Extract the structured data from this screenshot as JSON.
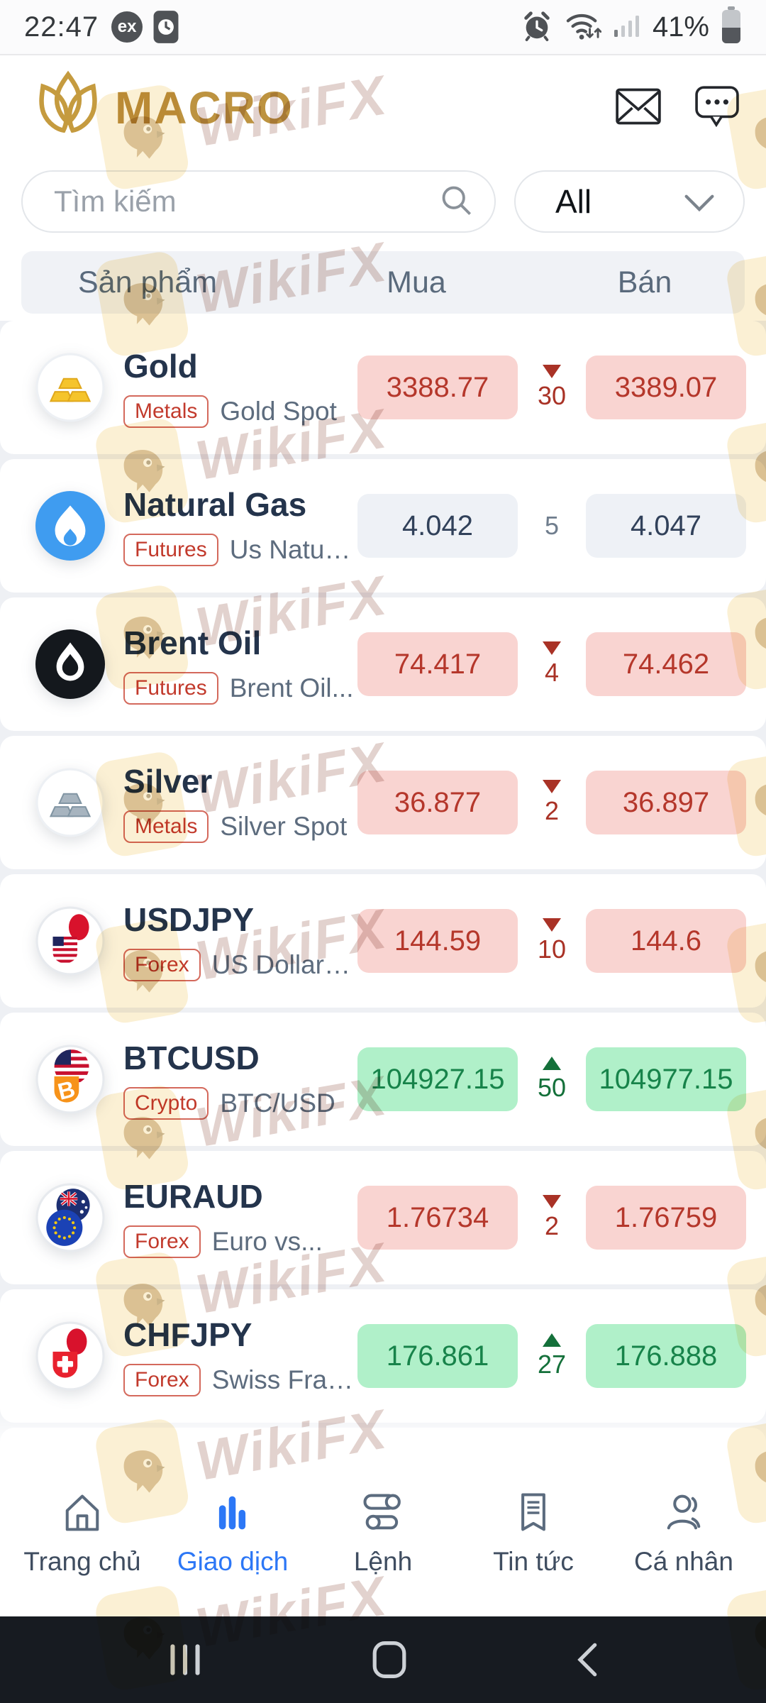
{
  "status_bar": {
    "time": "22:47",
    "ex_badge": "ex",
    "battery_percent": "41%",
    "icons": [
      "screenshot-badge-icon",
      "alarm-icon",
      "wifi-arrows-icon",
      "signal-bars-icon",
      "battery-icon"
    ]
  },
  "header": {
    "brand": "MACRO",
    "icons": [
      "mail-icon",
      "chat-icon"
    ]
  },
  "search": {
    "placeholder": "Tìm kiếm",
    "filter_value": "All"
  },
  "table_header": {
    "product": "Sản phẩm",
    "buy": "Mua",
    "sell": "Bán"
  },
  "market": {
    "rows": [
      {
        "name": "Gold",
        "category": "Metals",
        "description": "Gold Spot",
        "buy": "3388.77",
        "spread": "30",
        "direction": "down",
        "sell": "3389.07",
        "tone": "red",
        "icon": "gold-bars-icon",
        "partial": false
      },
      {
        "name": "Natural Gas",
        "category": "Futures",
        "description": "Us Natural...",
        "buy": "4.042",
        "spread": "5",
        "direction": "none",
        "sell": "4.047",
        "tone": "neutral",
        "icon": "gas-flame-icon",
        "partial": false
      },
      {
        "name": "Brent Oil",
        "category": "Futures",
        "description": "Brent Oil...",
        "buy": "74.417",
        "spread": "4",
        "direction": "down",
        "sell": "74.462",
        "tone": "red",
        "icon": "oil-drop-icon",
        "partial": false
      },
      {
        "name": "Silver",
        "category": "Metals",
        "description": "Silver Spot",
        "buy": "36.877",
        "spread": "2",
        "direction": "down",
        "sell": "36.897",
        "tone": "red",
        "icon": "silver-bars-icon",
        "partial": false
      },
      {
        "name": "USDJPY",
        "category": "Forex",
        "description": "US Dollar v...",
        "buy": "144.59",
        "spread": "10",
        "direction": "down",
        "sell": "144.6",
        "tone": "red",
        "icon": "usdjpy-flags-icon",
        "partial": false
      },
      {
        "name": "BTCUSD",
        "category": "Crypto",
        "description": "BTC/USD",
        "buy": "104927.15",
        "spread": "50",
        "direction": "up",
        "sell": "104977.15",
        "tone": "green",
        "icon": "btcusd-flags-icon",
        "partial": false
      },
      {
        "name": "EURAUD",
        "category": "Forex",
        "description": "Euro vs...",
        "buy": "1.76734",
        "spread": "2",
        "direction": "down",
        "sell": "1.76759",
        "tone": "red",
        "icon": "euraud-flags-icon",
        "partial": false
      },
      {
        "name": "CHFJPY",
        "category": "Forex",
        "description": "Swiss Fran...",
        "buy": "176.861",
        "spread": "27",
        "direction": "up",
        "sell": "176.888",
        "tone": "green",
        "icon": "chfjpy-flags-icon",
        "partial": false
      },
      {
        "name": "",
        "category": "",
        "description": "",
        "buy": "",
        "spread": "",
        "direction": "none",
        "sell": "",
        "tone": "red",
        "icon": "copper-icon",
        "partial": true
      }
    ]
  },
  "bottom_nav": {
    "items": [
      {
        "label": "Trang chủ",
        "icon": "home-icon",
        "active": false
      },
      {
        "label": "Giao dịch",
        "icon": "trade-chart-icon",
        "active": true
      },
      {
        "label": "Lệnh",
        "icon": "orders-sliders-icon",
        "active": false
      },
      {
        "label": "Tin tức",
        "icon": "news-icon",
        "active": false
      },
      {
        "label": "Cá nhân",
        "icon": "profile-icon",
        "active": false
      }
    ]
  },
  "android_nav": {
    "icons": [
      "recents-icon",
      "home-button-icon",
      "back-icon"
    ]
  },
  "watermark": {
    "label": "WikiFX"
  },
  "colors": {
    "brand_gold": "#bd9340",
    "accent_blue": "#2c77f6",
    "price_up_text": "#17834a",
    "price_up_bg": "#b0f0c9",
    "price_down_text": "#b5372b",
    "price_down_bg": "#f9d4d1",
    "price_neutral_text": "#31415a",
    "price_neutral_bg": "#eef1f6",
    "badge_red": "#c23a2c"
  }
}
